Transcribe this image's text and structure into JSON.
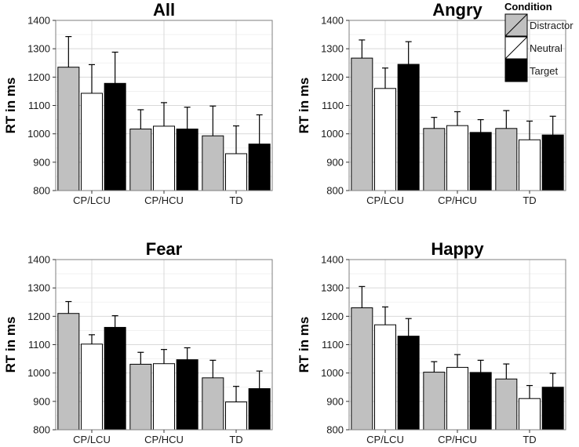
{
  "figure": {
    "ylabel": "RT in ms",
    "ylim": [
      800,
      1400
    ],
    "yticks": [
      800,
      900,
      1000,
      1100,
      1200,
      1300,
      1400
    ]
  },
  "legend": {
    "title": "Condition",
    "entries": [
      {
        "name": "Distractor",
        "color": "#c0c0c0"
      },
      {
        "name": "Neutral",
        "color": "#ffffff"
      },
      {
        "name": "Target",
        "color": "#000000"
      }
    ]
  },
  "chart_data": [
    {
      "type": "bar",
      "title": "All",
      "xlabel": "",
      "ylabel": "RT in ms",
      "ylim": [
        800,
        1400
      ],
      "categories": [
        "CP/LCU",
        "CP/HCU",
        "TD"
      ],
      "series": [
        {
          "name": "Distractor",
          "values": [
            1235,
            1017,
            993
          ],
          "error": [
            108,
            68,
            105
          ]
        },
        {
          "name": "Neutral",
          "values": [
            1143,
            1027,
            930
          ],
          "error": [
            101,
            83,
            98
          ]
        },
        {
          "name": "Target",
          "values": [
            1178,
            1017,
            964
          ],
          "error": [
            110,
            77,
            103
          ]
        }
      ]
    },
    {
      "type": "bar",
      "title": "Angry",
      "xlabel": "",
      "ylabel": "RT in ms",
      "ylim": [
        800,
        1400
      ],
      "categories": [
        "CP/LCU",
        "CP/HCU",
        "TD"
      ],
      "series": [
        {
          "name": "Distractor",
          "values": [
            1267,
            1019,
            1019
          ],
          "error": [
            64,
            39,
            63
          ]
        },
        {
          "name": "Neutral",
          "values": [
            1160,
            1029,
            979
          ],
          "error": [
            72,
            49,
            66
          ]
        },
        {
          "name": "Target",
          "values": [
            1245,
            1005,
            996
          ],
          "error": [
            80,
            45,
            66
          ]
        }
      ]
    },
    {
      "type": "bar",
      "title": "Fear",
      "xlabel": "",
      "ylabel": "RT in ms",
      "ylim": [
        800,
        1400
      ],
      "categories": [
        "CP/LCU",
        "CP/HCU",
        "TD"
      ],
      "series": [
        {
          "name": "Distractor",
          "values": [
            1210,
            1031,
            983
          ],
          "error": [
            42,
            42,
            62
          ]
        },
        {
          "name": "Neutral",
          "values": [
            1102,
            1033,
            898
          ],
          "error": [
            33,
            50,
            55
          ]
        },
        {
          "name": "Target",
          "values": [
            1161,
            1047,
            945
          ],
          "error": [
            41,
            42,
            62
          ]
        }
      ]
    },
    {
      "type": "bar",
      "title": "Happy",
      "xlabel": "",
      "ylabel": "RT in ms",
      "ylim": [
        800,
        1400
      ],
      "categories": [
        "CP/LCU",
        "CP/HCU",
        "TD"
      ],
      "series": [
        {
          "name": "Distractor",
          "values": [
            1230,
            1003,
            979
          ],
          "error": [
            75,
            37,
            53
          ]
        },
        {
          "name": "Neutral",
          "values": [
            1170,
            1020,
            910
          ],
          "error": [
            63,
            45,
            46
          ]
        },
        {
          "name": "Target",
          "values": [
            1130,
            1002,
            950
          ],
          "error": [
            62,
            43,
            49
          ]
        }
      ]
    }
  ]
}
